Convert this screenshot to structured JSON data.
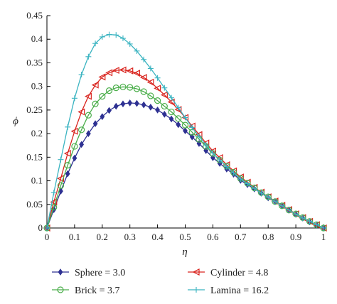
{
  "chart_data": {
    "type": "line",
    "xlabel": "η",
    "ylabel": "ϕ",
    "xlim": [
      0,
      1
    ],
    "ylim": [
      0,
      0.45
    ],
    "grid": false,
    "legend_position": "bottom",
    "x_ticks": [
      "0",
      "0.1",
      "0.2",
      "0.3",
      "0.4",
      "0.5",
      "0.6",
      "0.7",
      "0.8",
      "0.9",
      "1"
    ],
    "y_ticks": [
      "0",
      "0.05",
      "0.1",
      "0.15",
      "0.2",
      "0.25",
      "0.3",
      "0.35",
      "0.4",
      "0.45"
    ],
    "x_tick_values": [
      0,
      0.1,
      0.2,
      0.3,
      0.4,
      0.5,
      0.6,
      0.7,
      0.8,
      0.9,
      1
    ],
    "y_tick_values": [
      0,
      0.05,
      0.1,
      0.15,
      0.2,
      0.25,
      0.3,
      0.35,
      0.4,
      0.45
    ],
    "series": [
      {
        "name": "Sphere = 3.0",
        "color": "#2e3192",
        "marker": "diamond",
        "x": [
          0,
          0.025,
          0.05,
          0.075,
          0.1,
          0.125,
          0.15,
          0.175,
          0.2,
          0.225,
          0.25,
          0.275,
          0.3,
          0.325,
          0.35,
          0.375,
          0.4,
          0.425,
          0.45,
          0.475,
          0.5,
          0.525,
          0.55,
          0.575,
          0.6,
          0.625,
          0.65,
          0.675,
          0.7,
          0.725,
          0.75,
          0.775,
          0.8,
          0.825,
          0.85,
          0.875,
          0.9,
          0.925,
          0.95,
          0.975,
          1
        ],
        "y": [
          0,
          0.039,
          0.078,
          0.115,
          0.148,
          0.177,
          0.2,
          0.221,
          0.236,
          0.249,
          0.258,
          0.263,
          0.265,
          0.264,
          0.261,
          0.256,
          0.25,
          0.241,
          0.231,
          0.219,
          0.206,
          0.193,
          0.179,
          0.164,
          0.149,
          0.137,
          0.125,
          0.114,
          0.101,
          0.092,
          0.083,
          0.074,
          0.064,
          0.056,
          0.047,
          0.038,
          0.029,
          0.021,
          0.013,
          0.006,
          0
        ]
      },
      {
        "name": "Cylinder = 4.8",
        "color": "#d9231d",
        "marker": "triangle-left",
        "x": [
          0,
          0.025,
          0.05,
          0.075,
          0.1,
          0.125,
          0.15,
          0.175,
          0.2,
          0.225,
          0.25,
          0.275,
          0.3,
          0.325,
          0.35,
          0.375,
          0.4,
          0.425,
          0.45,
          0.475,
          0.5,
          0.525,
          0.55,
          0.575,
          0.6,
          0.625,
          0.65,
          0.675,
          0.7,
          0.725,
          0.75,
          0.775,
          0.8,
          0.825,
          0.85,
          0.875,
          0.9,
          0.925,
          0.95,
          0.975,
          1
        ],
        "y": [
          0,
          0.055,
          0.105,
          0.158,
          0.205,
          0.246,
          0.279,
          0.303,
          0.32,
          0.329,
          0.334,
          0.335,
          0.333,
          0.328,
          0.319,
          0.309,
          0.296,
          0.282,
          0.267,
          0.251,
          0.234,
          0.216,
          0.198,
          0.18,
          0.163,
          0.149,
          0.134,
          0.121,
          0.108,
          0.097,
          0.086,
          0.076,
          0.066,
          0.057,
          0.048,
          0.039,
          0.03,
          0.022,
          0.014,
          0.007,
          0
        ]
      },
      {
        "name": "Brick = 3.7",
        "color": "#4aae4a",
        "marker": "circle",
        "x": [
          0,
          0.025,
          0.05,
          0.075,
          0.1,
          0.125,
          0.15,
          0.175,
          0.2,
          0.225,
          0.25,
          0.275,
          0.3,
          0.325,
          0.35,
          0.375,
          0.4,
          0.425,
          0.45,
          0.475,
          0.5,
          0.525,
          0.55,
          0.575,
          0.6,
          0.625,
          0.65,
          0.675,
          0.7,
          0.725,
          0.75,
          0.775,
          0.8,
          0.825,
          0.85,
          0.875,
          0.9,
          0.925,
          0.95,
          0.975,
          1
        ],
        "y": [
          0,
          0.044,
          0.09,
          0.133,
          0.173,
          0.208,
          0.239,
          0.263,
          0.279,
          0.291,
          0.297,
          0.299,
          0.298,
          0.295,
          0.289,
          0.28,
          0.27,
          0.258,
          0.246,
          0.232,
          0.218,
          0.203,
          0.188,
          0.173,
          0.158,
          0.144,
          0.131,
          0.118,
          0.105,
          0.095,
          0.085,
          0.075,
          0.066,
          0.056,
          0.047,
          0.038,
          0.03,
          0.022,
          0.014,
          0.007,
          0
        ]
      },
      {
        "name": "Lamina = 16.2",
        "color": "#3bb4c1",
        "marker": "plus",
        "x": [
          0,
          0.025,
          0.05,
          0.075,
          0.1,
          0.125,
          0.15,
          0.175,
          0.2,
          0.225,
          0.25,
          0.275,
          0.3,
          0.325,
          0.35,
          0.375,
          0.4,
          0.425,
          0.45,
          0.475,
          0.5,
          0.525,
          0.55,
          0.575,
          0.6,
          0.625,
          0.65,
          0.675,
          0.7,
          0.725,
          0.75,
          0.775,
          0.8,
          0.825,
          0.85,
          0.875,
          0.9,
          0.925,
          0.95,
          0.975,
          1
        ],
        "y": [
          0,
          0.075,
          0.145,
          0.214,
          0.275,
          0.325,
          0.363,
          0.391,
          0.405,
          0.41,
          0.409,
          0.402,
          0.39,
          0.375,
          0.357,
          0.338,
          0.318,
          0.297,
          0.276,
          0.255,
          0.234,
          0.213,
          0.194,
          0.176,
          0.159,
          0.144,
          0.13,
          0.117,
          0.104,
          0.094,
          0.084,
          0.074,
          0.065,
          0.056,
          0.047,
          0.038,
          0.029,
          0.021,
          0.014,
          0.007,
          0
        ]
      }
    ]
  }
}
